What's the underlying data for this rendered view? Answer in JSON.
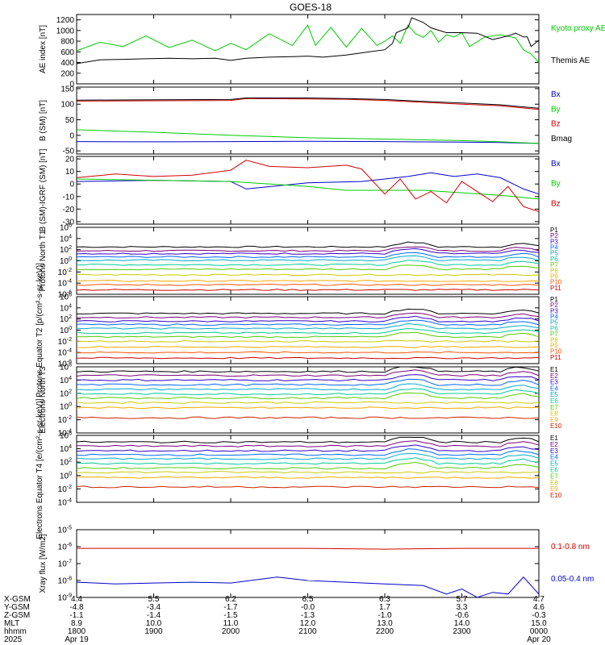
{
  "title": "GOES-18",
  "colors": {
    "black": "#000000",
    "red": "#d40000",
    "green": "#00cc00",
    "blue": "#0000cc",
    "P": [
      "#000000",
      "#7a007a",
      "#3300cc",
      "#0066ff",
      "#00aacc",
      "#00cc99",
      "#55cc00",
      "#cccc00",
      "#ffaa00",
      "#ff5500",
      "#cc0000"
    ],
    "E": [
      "#000000",
      "#7a007a",
      "#3300cc",
      "#0066ff",
      "#00aacc",
      "#00cc99",
      "#55cc00",
      "#cccc00",
      "#ffaa00",
      "#cc2200",
      "#cc0000"
    ]
  },
  "chart_data": [
    {
      "type": "line",
      "id": "ae",
      "ylabel": "AE index [nT]",
      "yticks": [
        "0",
        "200",
        "400",
        "600",
        "800",
        "1000",
        "1200"
      ],
      "ylim": [
        0,
        1300
      ],
      "series": [
        {
          "name": "Kyoto proxy AE",
          "color": "#00cc00",
          "x": [
            18.0,
            18.3,
            18.6,
            18.9,
            19.2,
            19.5,
            19.8,
            20.0,
            20.2,
            20.5,
            20.8,
            21.0,
            21.1,
            21.3,
            21.5,
            21.7,
            21.9,
            22.0,
            22.1,
            22.2,
            22.3,
            22.4,
            22.5,
            22.6,
            22.7,
            22.8,
            22.9,
            23.0,
            23.1,
            23.3,
            23.5,
            23.7,
            23.8,
            23.9,
            24.0
          ],
          "y": [
            620,
            780,
            700,
            900,
            680,
            820,
            620,
            760,
            640,
            940,
            720,
            1100,
            720,
            1060,
            690,
            1040,
            720,
            800,
            900,
            760,
            1100,
            940,
            870,
            1000,
            780,
            920,
            880,
            960,
            700,
            880,
            920,
            860,
            640,
            560,
            400
          ]
        },
        {
          "name": "Themis AE",
          "color": "#000000",
          "x": [
            18.0,
            18.3,
            18.6,
            18.9,
            19.2,
            19.5,
            19.8,
            20.0,
            20.2,
            20.5,
            20.8,
            21.0,
            21.2,
            21.5,
            21.8,
            22.0,
            22.1,
            22.15,
            22.3,
            22.35,
            22.5,
            22.6,
            22.8,
            23.0,
            23.2,
            23.4,
            23.6,
            23.7,
            23.8,
            23.85,
            23.9,
            24.0
          ],
          "y": [
            380,
            450,
            460,
            470,
            480,
            470,
            480,
            440,
            480,
            500,
            510,
            520,
            500,
            540,
            600,
            640,
            760,
            960,
            1050,
            1240,
            1150,
            1050,
            960,
            960,
            950,
            830,
            900,
            950,
            880,
            880,
            700,
            820
          ]
        }
      ]
    },
    {
      "type": "line",
      "id": "bsm",
      "ylabel": "B (SM) [nT]",
      "yticks": [
        "-50",
        "0",
        "50",
        "100",
        "150"
      ],
      "ylim": [
        -60,
        155
      ],
      "series": [
        {
          "name": "Bx",
          "color": "#0000cc",
          "x": [
            18.0,
            19.0,
            20.0,
            21.0,
            22.0,
            23.0,
            23.5,
            24.0
          ],
          "y": [
            -20,
            -21,
            -20,
            -19,
            -20,
            -22,
            -23,
            -26
          ]
        },
        {
          "name": "By",
          "color": "#00cc00",
          "x": [
            18.0,
            19.0,
            20.0,
            21.0,
            22.0,
            23.0,
            23.5,
            24.0
          ],
          "y": [
            18,
            10,
            0,
            -8,
            -12,
            -17,
            -21,
            -26
          ]
        },
        {
          "name": "Bz",
          "color": "#d40000",
          "x": [
            18.0,
            19.0,
            20.0,
            20.2,
            21.0,
            21.5,
            22.0,
            22.5,
            23.0,
            23.5,
            24.0
          ],
          "y": [
            110,
            111,
            112,
            118,
            117,
            116,
            112,
            106,
            100,
            95,
            83
          ]
        },
        {
          "name": "Bmag",
          "color": "#000000",
          "x": [
            18.0,
            19.0,
            20.0,
            20.2,
            21.0,
            21.5,
            22.0,
            22.5,
            23.0,
            23.5,
            24.0
          ],
          "y": [
            113,
            114,
            115,
            120,
            120,
            118,
            115,
            109,
            104,
            98,
            87
          ]
        }
      ]
    },
    {
      "type": "line",
      "id": "bdiff",
      "ylabel": "B (SM)-IGRF (SM) [nT]",
      "yticks": [
        "-30",
        "-20",
        "-10",
        "0",
        "10",
        "20"
      ],
      "ylim": [
        -32,
        22
      ],
      "series": [
        {
          "name": "Bx",
          "color": "#0000cc",
          "x": [
            18.0,
            19.0,
            20.0,
            20.2,
            21.0,
            21.7,
            22.0,
            22.3,
            22.6,
            22.9,
            23.2,
            23.5,
            23.8,
            24.0
          ],
          "y": [
            2,
            3,
            2,
            -4,
            1,
            2,
            4,
            6,
            9,
            6,
            8,
            5,
            -4,
            -8
          ]
        },
        {
          "name": "By",
          "color": "#00cc00",
          "x": [
            18.0,
            19.0,
            20.0,
            21.0,
            21.5,
            22.0,
            22.5,
            23.0,
            23.5,
            24.0
          ],
          "y": [
            4,
            3,
            2,
            -2,
            -5,
            -5,
            -5,
            -7,
            -9,
            -12
          ]
        },
        {
          "name": "Bz",
          "color": "#d40000",
          "x": [
            18.0,
            18.5,
            19.0,
            19.5,
            20.0,
            20.2,
            20.5,
            21.0,
            21.5,
            21.7,
            22.0,
            22.2,
            22.4,
            22.6,
            22.8,
            23.0,
            23.2,
            23.4,
            23.6,
            23.8,
            24.0
          ],
          "y": [
            5,
            8,
            6,
            7,
            11,
            19,
            14,
            13,
            15,
            12,
            -8,
            4,
            -12,
            -6,
            -15,
            2,
            -6,
            -14,
            -2,
            -18,
            -22
          ]
        }
      ]
    },
    {
      "type": "line",
      "id": "pn",
      "yscale": "log",
      "ylabel": "Protons North T1",
      "yticks": [
        "10^-6",
        "10^-4",
        "10^-2",
        "10^0",
        "10^2",
        "10^4",
        "10^6"
      ],
      "ylim": [
        -6,
        6
      ],
      "channels": [
        "P1",
        "P2",
        "P3",
        "P4",
        "P5",
        "P6",
        "P7",
        "P8",
        "P9",
        "P10",
        "P11"
      ],
      "levels": [
        2.5,
        1.8,
        1.3,
        0.7,
        0.1,
        -0.7,
        -1.5,
        -2.5,
        -3.6,
        -4.3,
        -5.2
      ]
    },
    {
      "type": "line",
      "id": "pe",
      "yscale": "log",
      "ylabel": "Protons Equator T2 [p/(cm²-s-sr-keV)]",
      "yticks": [
        "10^-6",
        "10^-4",
        "10^-2",
        "10^0",
        "10^2",
        "10^4",
        "10^6"
      ],
      "ylim": [
        -6,
        6
      ],
      "channels": [
        "P1",
        "P2",
        "P3",
        "P4",
        "P5",
        "P6",
        "P7",
        "P8",
        "P9",
        "P10",
        "P11"
      ],
      "levels": [
        3.0,
        2.3,
        1.6,
        1.0,
        0.3,
        -0.5,
        -1.2,
        -2.0,
        -3.0,
        -4.0,
        -5.0
      ]
    },
    {
      "type": "line",
      "id": "en",
      "yscale": "log",
      "ylabel": "Electrons North T3",
      "yticks": [
        "10^-4",
        "10^-2",
        "10^0",
        "10^2",
        "10^4",
        "10^6"
      ],
      "ylim": [
        -4,
        6
      ],
      "channels": [
        "E1",
        "E2",
        "E3",
        "E4",
        "E5",
        "E6",
        "E7",
        "E8",
        "E9",
        "E10"
      ],
      "levels": [
        5.3,
        4.7,
        4.0,
        3.3,
        2.6,
        1.9,
        1.3,
        0.6,
        -0.2,
        -1.7
      ]
    },
    {
      "type": "line",
      "id": "ee",
      "yscale": "log",
      "ylabel": "Electrons Equator T4 [e/(cm²-s-sr-keV)]",
      "yticks": [
        "10^-4",
        "10^-2",
        "10^0",
        "10^2",
        "10^4",
        "10^6"
      ],
      "ylim": [
        -4,
        6
      ],
      "channels": [
        "E1",
        "E2",
        "E3",
        "E4",
        "E5",
        "E6",
        "E7",
        "E8",
        "E9",
        "E10"
      ],
      "levels": [
        5.0,
        4.4,
        3.7,
        3.1,
        2.5,
        1.8,
        1.1,
        0.5,
        -0.3,
        -1.7
      ]
    },
    {
      "type": "line",
      "id": "xray",
      "yscale": "log",
      "ylabel": "Xray flux [W/m2]",
      "yticks": [
        "10^-9",
        "10^-8",
        "10^-7",
        "10^-6",
        "10^-5"
      ],
      "ylim": [
        -9,
        -5
      ],
      "series": [
        {
          "name": "0.1-0.8 nm",
          "color": "#d40000",
          "x": [
            18.0,
            19.0,
            20.0,
            21.0,
            22.0,
            23.0,
            24.0
          ],
          "y": [
            -6.1,
            -6.1,
            -6.1,
            -6.1,
            -6.15,
            -6.1,
            -6.1
          ]
        },
        {
          "name": "0.05-0.4 nm",
          "color": "#0000cc",
          "x": [
            18.0,
            18.5,
            19.0,
            19.5,
            20.0,
            20.6,
            21.0,
            21.5,
            22.0,
            22.5,
            22.8,
            23.0,
            23.2,
            23.4,
            23.6,
            23.8,
            24.0
          ],
          "y": [
            -8.1,
            -8.2,
            -8.15,
            -8.1,
            -8.15,
            -7.8,
            -8.0,
            -8.1,
            -8.2,
            -8.3,
            -8.8,
            -8.5,
            -9.0,
            -8.7,
            -8.8,
            -7.8,
            -8.8
          ]
        }
      ]
    }
  ],
  "panel_labels": [
    {
      "panel": "ae",
      "labels": [
        {
          "text": "Kyoto proxy AE",
          "color": "#00cc00"
        },
        {
          "text": "Themis AE",
          "color": "#000000"
        }
      ]
    },
    {
      "panel": "bsm",
      "labels": [
        {
          "text": "Bx",
          "color": "#0000cc"
        },
        {
          "text": "By",
          "color": "#00cc00"
        },
        {
          "text": "Bz",
          "color": "#d40000"
        },
        {
          "text": "Bmag",
          "color": "#000000"
        }
      ]
    },
    {
      "panel": "bdiff",
      "labels": [
        {
          "text": "Bx",
          "color": "#0000cc"
        },
        {
          "text": "By",
          "color": "#00cc00"
        },
        {
          "text": "Bz",
          "color": "#d40000"
        }
      ]
    },
    {
      "panel": "xray",
      "labels": [
        {
          "text": "0.1-0.8 nm",
          "color": "#d40000"
        },
        {
          "text": "0.05-0.4 nm",
          "color": "#0000cc"
        }
      ]
    }
  ],
  "xaxis": {
    "rows": [
      {
        "label": "X-GSM",
        "values": [
          "4.4",
          "5.5",
          "6.2",
          "6.5",
          "6.3",
          "5.7",
          "4.7"
        ]
      },
      {
        "label": "Y-GSM",
        "values": [
          "-4.8",
          "-3.4",
          "-1.7",
          "-0.0",
          "1.7",
          "3.3",
          "4.6"
        ]
      },
      {
        "label": "Z-GSM",
        "values": [
          "-1.1",
          "-1.4",
          "-1.5",
          "-1.3",
          "-1.0",
          "-0.6",
          "-0.3"
        ]
      },
      {
        "label": "MLT",
        "values": [
          "8.9",
          "10.0",
          "11.0",
          "12.0",
          "13.0",
          "14.0",
          "15.0"
        ]
      },
      {
        "label": "hhmm",
        "values": [
          "1800",
          "1900",
          "2000",
          "2100",
          "2200",
          "2300",
          "0000"
        ]
      }
    ],
    "year": "2025",
    "start_date": "Apr 19",
    "end_date": "Apr 20"
  }
}
